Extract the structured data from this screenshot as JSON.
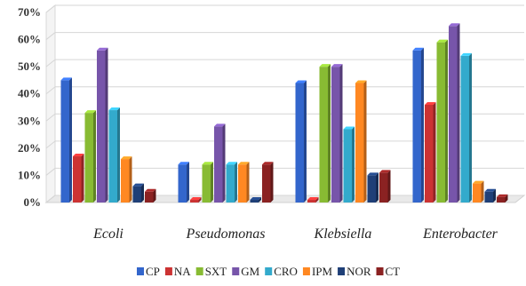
{
  "chart_data": {
    "type": "bar",
    "categories": [
      "Ecoli",
      "Pseudomonas",
      "Klebsiella",
      "Enterobacter"
    ],
    "series": [
      {
        "name": "CP",
        "color": "#3366cc",
        "values": [
          45,
          14,
          44,
          56
        ]
      },
      {
        "name": "NA",
        "color": "#cc3333",
        "values": [
          17,
          1,
          1,
          36
        ]
      },
      {
        "name": "SXT",
        "color": "#88bb33",
        "values": [
          33,
          14,
          50,
          59
        ]
      },
      {
        "name": "GM",
        "color": "#7755aa",
        "values": [
          56,
          28,
          50,
          65
        ]
      },
      {
        "name": "CRO",
        "color": "#33aacc",
        "values": [
          34,
          14,
          27,
          54
        ]
      },
      {
        "name": "IPM",
        "color": "#ff8822",
        "values": [
          16,
          14,
          44,
          7
        ]
      },
      {
        "name": "NOR",
        "color": "#1f3f77",
        "values": [
          6,
          1,
          10,
          4
        ]
      },
      {
        "name": "CT",
        "color": "#8b2222",
        "values": [
          4,
          14,
          11,
          2
        ]
      }
    ],
    "yticks": [
      "0%",
      "10%",
      "20%",
      "30%",
      "40%",
      "50%",
      "60%",
      "70%"
    ],
    "ylim": [
      0,
      70
    ],
    "grid": true,
    "legend_position": "bottom"
  }
}
